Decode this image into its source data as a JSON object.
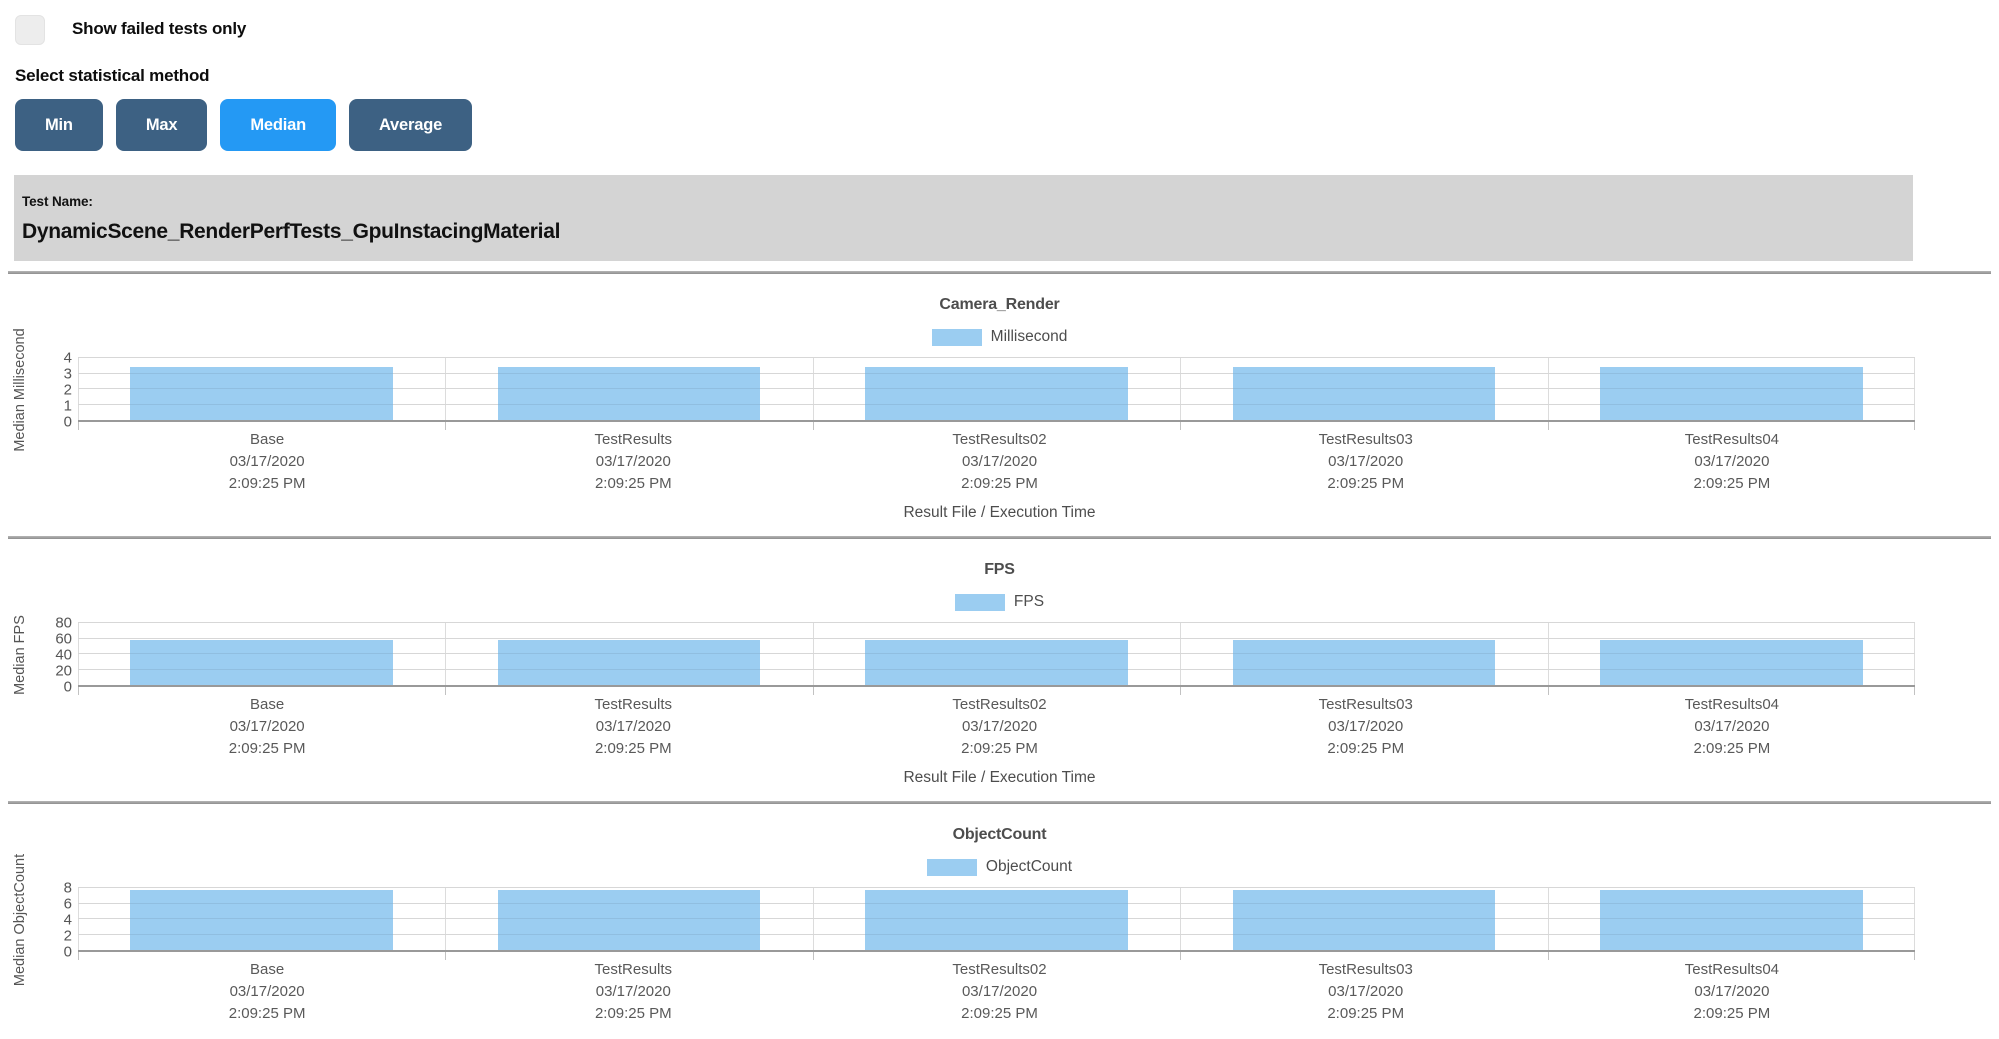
{
  "colors": {
    "bar": "#9BCDF1",
    "button": "#3D6183",
    "button_active": "#2499F4",
    "panel": "#D4D4D4",
    "divider": "#9E9E9E"
  },
  "controls": {
    "show_failed_label": "Show failed tests only",
    "checkbox_checked": false,
    "stat_method_label": "Select statistical method",
    "buttons": [
      {
        "label": "Min",
        "active": false
      },
      {
        "label": "Max",
        "active": false
      },
      {
        "label": "Median",
        "active": true
      },
      {
        "label": "Average",
        "active": false
      }
    ]
  },
  "test_header": {
    "label": "Test Name:",
    "name": "DynamicScene_RenderPerfTests_GpuInstacingMaterial"
  },
  "chart_data": [
    {
      "type": "bar",
      "title": "Camera_Render",
      "legend": "Millisecond",
      "ylabel": "Median Millisecond",
      "xlabel": "Result File / Execution Time",
      "ylim": [
        0,
        4
      ],
      "yticks": [
        0,
        1,
        2,
        3,
        4
      ],
      "grid": true,
      "legend_position": "top",
      "categories": [
        {
          "name": "Base",
          "date": "03/17/2020",
          "time": "2:09:25 PM"
        },
        {
          "name": "TestResults",
          "date": "03/17/2020",
          "time": "2:09:25 PM"
        },
        {
          "name": "TestResults02",
          "date": "03/17/2020",
          "time": "2:09:25 PM"
        },
        {
          "name": "TestResults03",
          "date": "03/17/2020",
          "time": "2:09:25 PM"
        },
        {
          "name": "TestResults04",
          "date": "03/17/2020",
          "time": "2:09:25 PM"
        }
      ],
      "values": [
        3.4,
        3.4,
        3.4,
        3.4,
        3.4
      ]
    },
    {
      "type": "bar",
      "title": "FPS",
      "legend": "FPS",
      "ylabel": "Median FPS",
      "xlabel": "Result File / Execution Time",
      "ylim": [
        0,
        80
      ],
      "yticks": [
        0,
        20,
        40,
        60,
        80
      ],
      "grid": true,
      "legend_position": "top",
      "categories": [
        {
          "name": "Base",
          "date": "03/17/2020",
          "time": "2:09:25 PM"
        },
        {
          "name": "TestResults",
          "date": "03/17/2020",
          "time": "2:09:25 PM"
        },
        {
          "name": "TestResults02",
          "date": "03/17/2020",
          "time": "2:09:25 PM"
        },
        {
          "name": "TestResults03",
          "date": "03/17/2020",
          "time": "2:09:25 PM"
        },
        {
          "name": "TestResults04",
          "date": "03/17/2020",
          "time": "2:09:25 PM"
        }
      ],
      "values": [
        58,
        58,
        58,
        58,
        58
      ]
    },
    {
      "type": "bar",
      "title": "ObjectCount",
      "legend": "ObjectCount",
      "ylabel": "Median ObjectCount",
      "xlabel": "",
      "ylim": [
        0,
        8
      ],
      "yticks": [
        0,
        2,
        4,
        6,
        8
      ],
      "grid": true,
      "legend_position": "top",
      "categories": [
        {
          "name": "Base",
          "date": "03/17/2020",
          "time": "2:09:25 PM"
        },
        {
          "name": "TestResults",
          "date": "03/17/2020",
          "time": "2:09:25 PM"
        },
        {
          "name": "TestResults02",
          "date": "03/17/2020",
          "time": "2:09:25 PM"
        },
        {
          "name": "TestResults03",
          "date": "03/17/2020",
          "time": "2:09:25 PM"
        },
        {
          "name": "TestResults04",
          "date": "03/17/2020",
          "time": "2:09:25 PM"
        }
      ],
      "values": [
        7.7,
        7.7,
        7.7,
        7.7,
        7.7
      ]
    }
  ]
}
